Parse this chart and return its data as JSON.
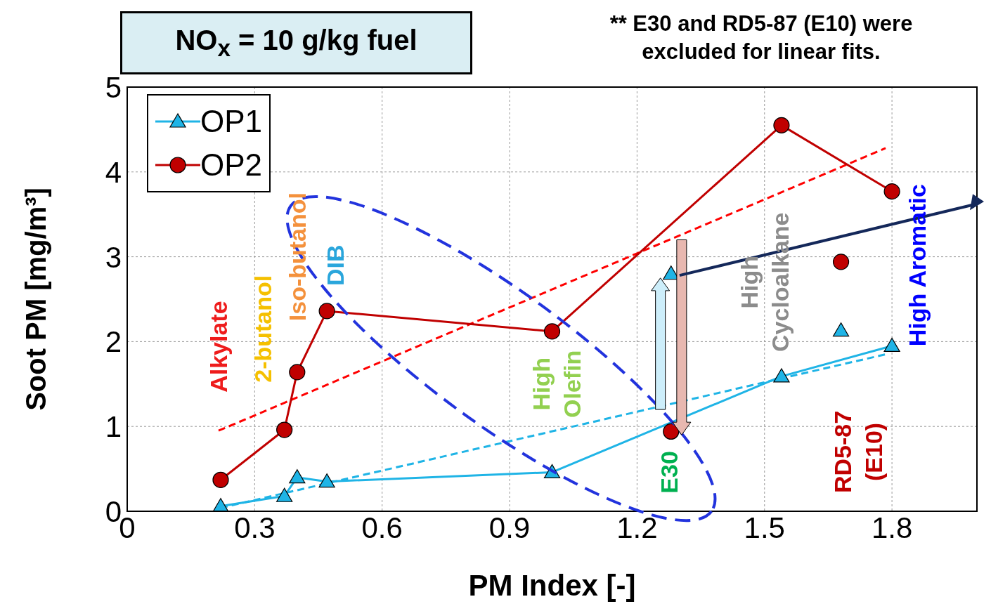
{
  "chart_data": {
    "type": "line",
    "title": "NO$_{x}$ = 10 g/kg fuel",
    "xlabel": "PM Index [-]",
    "ylabel": "Soot PM [mg/m³]",
    "xlim": [
      0,
      2.0
    ],
    "xticks": [
      0,
      0.3,
      0.6,
      0.9,
      1.2,
      1.5,
      1.8
    ],
    "ylim": [
      0,
      5
    ],
    "yticks": [
      0,
      1,
      2,
      3,
      4,
      5
    ],
    "grid": true,
    "legend": "top left",
    "series": [
      {
        "name": "OP1",
        "color": "#1fb4e6",
        "marker": "triangle",
        "x": [
          0.22,
          0.37,
          0.4,
          0.47,
          1.0,
          1.54,
          1.8
        ],
        "values": [
          0.06,
          0.18,
          0.4,
          0.35,
          0.46,
          1.59,
          1.95
        ]
      },
      {
        "name": "OP2",
        "color": "#c00000",
        "marker": "circle",
        "x": [
          0.22,
          0.37,
          0.4,
          0.47,
          1.0,
          1.54,
          1.8
        ],
        "values": [
          0.37,
          0.96,
          1.64,
          2.36,
          2.12,
          4.55,
          3.77
        ]
      },
      {
        "type": "scatter",
        "color": "#1fb4e6",
        "marker": "triangle",
        "x": [
          1.28,
          1.68
        ],
        "values": [
          2.8,
          2.13
        ]
      },
      {
        "type": "scatter",
        "color": "#c00000",
        "marker": "circle",
        "x": [
          1.28,
          1.68
        ],
        "values": [
          0.94,
          2.94
        ]
      },
      {
        "type": "line",
        "color": "#1fb4e6",
        "line_style": "dashed",
        "x": [
          0.22,
          1.785
        ],
        "values": [
          0.04,
          1.85
        ]
      },
      {
        "type": "line",
        "color": "#ff0000",
        "line_style": "dashed",
        "x": [
          0.215,
          1.785
        ],
        "values": [
          0.95,
          4.28
        ]
      }
    ],
    "annotations": [
      "** E30 and RD5-87 (E10) were excluded for linear fits.",
      "Alkylate",
      "2-butanol",
      "Iso-butanol",
      "DIB",
      "High\nOlefin",
      "E30",
      "High\nCycloalkane",
      "RD5-87\n(E10)",
      "High Aromatic"
    ]
  }
}
